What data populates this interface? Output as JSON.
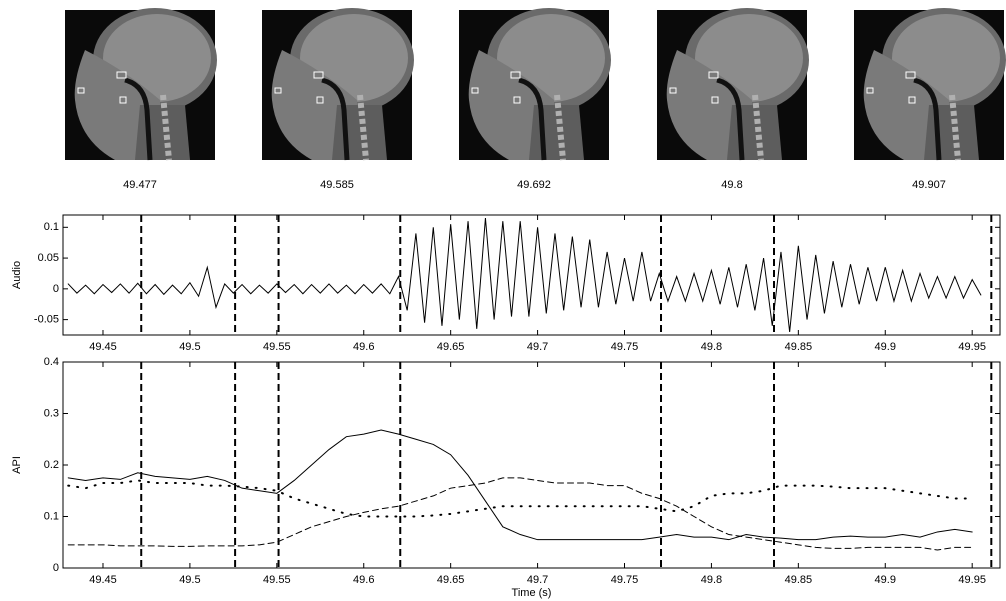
{
  "frames": [
    {
      "time": 49.477
    },
    {
      "time": 49.585
    },
    {
      "time": 49.692
    },
    {
      "time": 49.8
    },
    {
      "time": 49.907
    }
  ],
  "chart_data": [
    {
      "type": "line",
      "ylabel": "Audio",
      "xlim": [
        49.427,
        49.966
      ],
      "ylim": [
        -0.075,
        0.12
      ],
      "xticks": [
        49.45,
        49.5,
        49.55,
        49.6,
        49.65,
        49.7,
        49.75,
        49.8,
        49.85,
        49.9,
        49.95
      ],
      "yticks": [
        -0.05,
        0,
        0.05,
        0.1
      ],
      "vlines": [
        49.472,
        49.526,
        49.551,
        49.621,
        49.771,
        49.836,
        49.961
      ],
      "x": [
        49.43,
        49.435,
        49.44,
        49.445,
        49.45,
        49.455,
        49.46,
        49.465,
        49.47,
        49.475,
        49.48,
        49.485,
        49.49,
        49.495,
        49.5,
        49.505,
        49.51,
        49.515,
        49.52,
        49.525,
        49.53,
        49.535,
        49.54,
        49.545,
        49.55,
        49.555,
        49.56,
        49.565,
        49.57,
        49.575,
        49.58,
        49.585,
        49.59,
        49.595,
        49.6,
        49.605,
        49.61,
        49.615,
        49.62,
        49.625,
        49.63,
        49.635,
        49.64,
        49.645,
        49.65,
        49.655,
        49.66,
        49.665,
        49.67,
        49.675,
        49.68,
        49.685,
        49.69,
        49.695,
        49.7,
        49.705,
        49.71,
        49.715,
        49.72,
        49.725,
        49.73,
        49.735,
        49.74,
        49.745,
        49.75,
        49.755,
        49.76,
        49.765,
        49.77,
        49.775,
        49.78,
        49.785,
        49.79,
        49.795,
        49.8,
        49.805,
        49.81,
        49.815,
        49.82,
        49.825,
        49.83,
        49.835,
        49.84,
        49.845,
        49.85,
        49.855,
        49.86,
        49.865,
        49.87,
        49.875,
        49.88,
        49.885,
        49.89,
        49.895,
        49.9,
        49.905,
        49.91,
        49.915,
        49.92,
        49.925,
        49.93,
        49.935,
        49.94,
        49.945,
        49.95,
        49.955
      ],
      "series": [
        {
          "color": "#000000",
          "style": "solid",
          "values": [
            0.008,
            -0.007,
            0.006,
            -0.008,
            0.007,
            -0.006,
            0.008,
            -0.007,
            0.009,
            -0.008,
            0.007,
            -0.009,
            0.006,
            -0.008,
            0.01,
            -0.012,
            0.035,
            -0.03,
            0.008,
            -0.007,
            0.007,
            -0.008,
            0.006,
            -0.007,
            0.008,
            -0.006,
            0.007,
            -0.008,
            0.007,
            -0.007,
            0.008,
            -0.007,
            0.006,
            -0.008,
            0.007,
            -0.007,
            0.008,
            -0.008,
            0.02,
            -0.035,
            0.09,
            -0.055,
            0.1,
            -0.06,
            0.105,
            -0.05,
            0.11,
            -0.065,
            0.115,
            -0.05,
            0.11,
            -0.045,
            0.11,
            -0.045,
            0.1,
            -0.04,
            0.09,
            -0.035,
            0.085,
            -0.03,
            0.08,
            -0.03,
            0.06,
            -0.025,
            0.05,
            -0.02,
            0.06,
            -0.02,
            0.025,
            -0.02,
            0.02,
            -0.02,
            0.025,
            -0.02,
            0.03,
            -0.025,
            0.035,
            -0.03,
            0.04,
            -0.035,
            0.05,
            -0.06,
            0.06,
            -0.07,
            0.07,
            -0.05,
            0.055,
            -0.04,
            0.045,
            -0.03,
            0.04,
            -0.025,
            0.035,
            -0.02,
            0.035,
            -0.02,
            0.03,
            -0.02,
            0.025,
            -0.015,
            0.02,
            -0.015,
            0.02,
            -0.015,
            0.015,
            -0.01
          ]
        }
      ]
    },
    {
      "type": "line",
      "ylabel": "API",
      "xlabel": "Time (s)",
      "xlim": [
        49.427,
        49.966
      ],
      "ylim": [
        0,
        0.4
      ],
      "xticks": [
        49.45,
        49.5,
        49.55,
        49.6,
        49.65,
        49.7,
        49.75,
        49.8,
        49.85,
        49.9,
        49.95
      ],
      "yticks": [
        0,
        0.1,
        0.2,
        0.3,
        0.4
      ],
      "vlines": [
        49.472,
        49.526,
        49.551,
        49.621,
        49.771,
        49.836,
        49.961
      ],
      "x": [
        49.43,
        49.44,
        49.45,
        49.46,
        49.47,
        49.48,
        49.49,
        49.5,
        49.51,
        49.52,
        49.53,
        49.54,
        49.55,
        49.56,
        49.57,
        49.58,
        49.59,
        49.6,
        49.61,
        49.62,
        49.63,
        49.64,
        49.65,
        49.66,
        49.67,
        49.68,
        49.69,
        49.7,
        49.71,
        49.72,
        49.73,
        49.74,
        49.75,
        49.76,
        49.77,
        49.78,
        49.79,
        49.8,
        49.81,
        49.82,
        49.83,
        49.84,
        49.85,
        49.86,
        49.87,
        49.88,
        49.89,
        49.9,
        49.91,
        49.92,
        49.93,
        49.94,
        49.95
      ],
      "series": [
        {
          "color": "#000000",
          "style": "solid",
          "values": [
            0.175,
            0.17,
            0.175,
            0.172,
            0.185,
            0.178,
            0.175,
            0.172,
            0.178,
            0.17,
            0.155,
            0.15,
            0.145,
            0.17,
            0.2,
            0.23,
            0.255,
            0.26,
            0.268,
            0.26,
            0.25,
            0.24,
            0.22,
            0.18,
            0.13,
            0.08,
            0.065,
            0.055,
            0.055,
            0.055,
            0.055,
            0.055,
            0.055,
            0.055,
            0.06,
            0.065,
            0.06,
            0.06,
            0.055,
            0.065,
            0.06,
            0.058,
            0.055,
            0.055,
            0.06,
            0.062,
            0.06,
            0.06,
            0.065,
            0.06,
            0.07,
            0.075,
            0.07
          ]
        },
        {
          "color": "#000000",
          "style": "dashed",
          "values": [
            0.045,
            0.045,
            0.045,
            0.043,
            0.043,
            0.043,
            0.042,
            0.042,
            0.043,
            0.043,
            0.043,
            0.045,
            0.05,
            0.065,
            0.08,
            0.09,
            0.1,
            0.108,
            0.115,
            0.12,
            0.13,
            0.14,
            0.155,
            0.16,
            0.165,
            0.175,
            0.175,
            0.17,
            0.165,
            0.165,
            0.165,
            0.16,
            0.16,
            0.145,
            0.135,
            0.12,
            0.1,
            0.08,
            0.065,
            0.06,
            0.055,
            0.05,
            0.045,
            0.04,
            0.038,
            0.038,
            0.04,
            0.04,
            0.04,
            0.04,
            0.035,
            0.04,
            0.04
          ]
        },
        {
          "color": "#000000",
          "style": "dotted",
          "values": [
            0.16,
            0.155,
            0.165,
            0.165,
            0.17,
            0.165,
            0.165,
            0.165,
            0.16,
            0.16,
            0.158,
            0.155,
            0.15,
            0.135,
            0.125,
            0.115,
            0.105,
            0.1,
            0.1,
            0.1,
            0.1,
            0.102,
            0.105,
            0.11,
            0.115,
            0.12,
            0.12,
            0.12,
            0.12,
            0.12,
            0.12,
            0.12,
            0.12,
            0.12,
            0.115,
            0.11,
            0.12,
            0.14,
            0.145,
            0.145,
            0.15,
            0.16,
            0.16,
            0.16,
            0.158,
            0.155,
            0.155,
            0.155,
            0.15,
            0.145,
            0.14,
            0.135,
            0.135
          ]
        }
      ]
    }
  ]
}
